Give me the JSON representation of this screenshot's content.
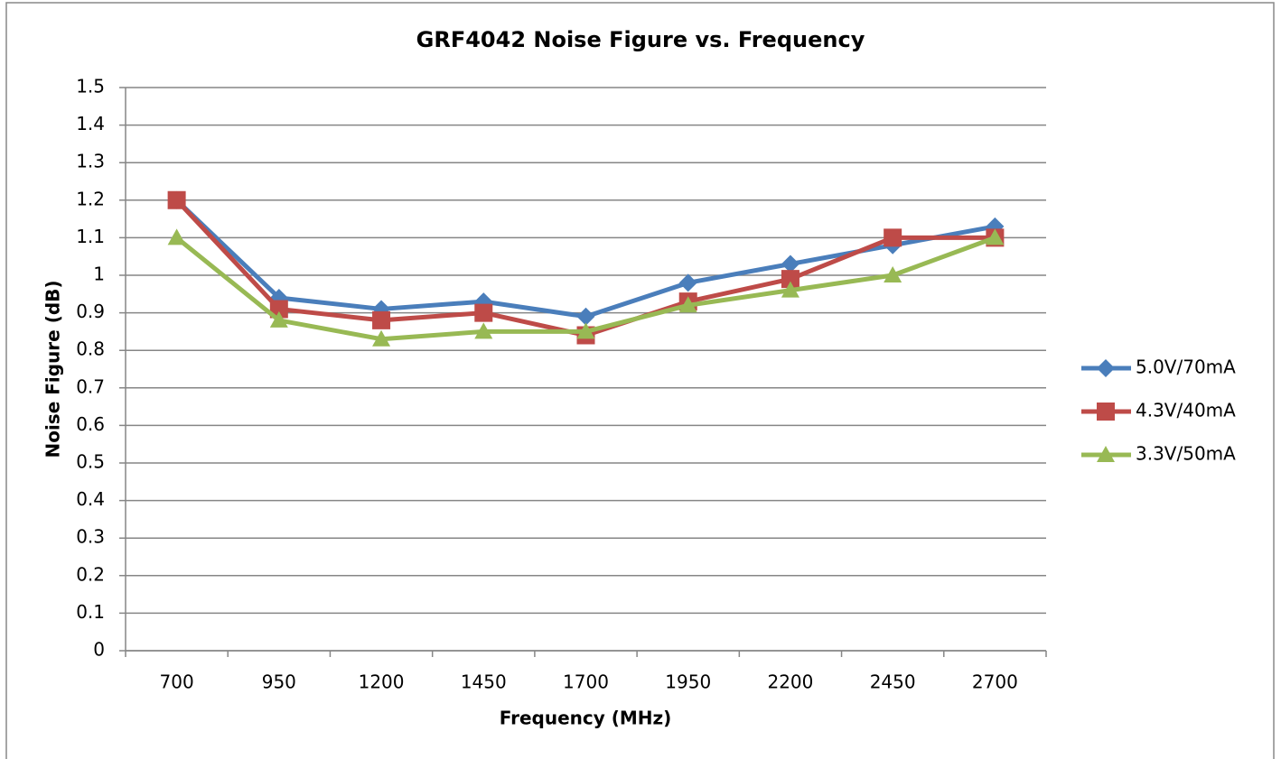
{
  "chart_data": {
    "type": "line",
    "title": "GRF4042 Noise Figure vs. Frequency",
    "x_label": "Frequency (MHz)",
    "y_label": "Noise Figure (dB)",
    "categories": [
      "700",
      "950",
      "1200",
      "1450",
      "1700",
      "1950",
      "2200",
      "2450",
      "2700"
    ],
    "series": [
      {
        "name": "5.0V/70mA",
        "color": "#4a7ebb",
        "marker": "diamond",
        "values": [
          1.2,
          0.94,
          0.91,
          0.93,
          0.89,
          0.98,
          1.03,
          1.08,
          1.13
        ]
      },
      {
        "name": "4.3V/40mA",
        "color": "#be4b48",
        "marker": "square",
        "values": [
          1.2,
          0.91,
          0.88,
          0.9,
          0.84,
          0.93,
          0.99,
          1.1,
          1.1
        ]
      },
      {
        "name": "3.3V/50mA",
        "color": "#98b954",
        "marker": "triangle",
        "values": [
          1.1,
          0.88,
          0.83,
          0.85,
          0.85,
          0.92,
          0.96,
          1.0,
          1.1
        ]
      }
    ],
    "ylim": [
      0,
      1.5
    ],
    "yticks": [
      0,
      0.1,
      0.2,
      0.3,
      0.4,
      0.5,
      0.6,
      0.7,
      0.8,
      0.9,
      1,
      1.1,
      1.2,
      1.3,
      1.4,
      1.5
    ],
    "grid": true,
    "legend": "right"
  }
}
